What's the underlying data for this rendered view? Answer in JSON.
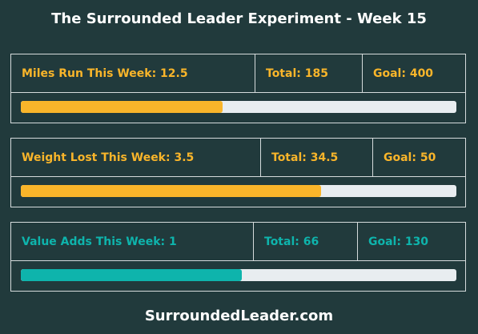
{
  "title": "The Surrounded Leader Experiment - Week 15",
  "footer": "SurroundedLeader.com",
  "colors": {
    "background": "#213a3c",
    "orange": "#f9b52a",
    "teal": "#0eb4ac",
    "track": "#e8edf0",
    "border": "#d5dbdc"
  },
  "panels": [
    {
      "week_label": "Miles Run This Week: 12.5",
      "total_label": "Total: 185",
      "goal_label": "Goal: 400",
      "color": "#f9b52a",
      "progress": 0.4625
    },
    {
      "week_label": "Weight Lost This Week: 3.5",
      "total_label": "Total: 34.5",
      "goal_label": "Goal: 50",
      "color": "#f9b52a",
      "progress": 0.69
    },
    {
      "week_label": "Value Adds This Week: 1",
      "total_label": "Total: 66",
      "goal_label": "Goal: 130",
      "color": "#0eb4ac",
      "progress": 0.5077
    }
  ]
}
